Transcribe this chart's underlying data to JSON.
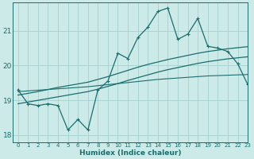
{
  "x": [
    0,
    1,
    2,
    3,
    4,
    5,
    6,
    7,
    8,
    9,
    10,
    11,
    12,
    13,
    14,
    15,
    16,
    17,
    18,
    19,
    20,
    21,
    22,
    23
  ],
  "y_main": [
    19.3,
    18.9,
    18.85,
    18.9,
    18.85,
    18.15,
    18.45,
    18.15,
    19.3,
    19.55,
    20.35,
    20.2,
    20.8,
    21.1,
    21.55,
    21.65,
    20.75,
    20.9,
    21.35,
    20.55,
    20.5,
    20.4,
    20.05,
    19.45
  ],
  "y_trend_low": [
    18.9,
    18.95,
    19.0,
    19.05,
    19.1,
    19.15,
    19.2,
    19.25,
    19.32,
    19.4,
    19.48,
    19.57,
    19.65,
    19.73,
    19.81,
    19.88,
    19.94,
    20.0,
    20.06,
    20.11,
    20.15,
    20.19,
    20.22,
    20.25
  ],
  "y_trend_high": [
    19.15,
    19.2,
    19.25,
    19.31,
    19.37,
    19.42,
    19.47,
    19.52,
    19.6,
    19.68,
    19.77,
    19.86,
    19.95,
    20.03,
    20.1,
    20.17,
    20.23,
    20.29,
    20.35,
    20.4,
    20.44,
    20.48,
    20.51,
    20.54
  ],
  "y_flat": [
    19.25,
    19.27,
    19.29,
    19.31,
    19.33,
    19.35,
    19.37,
    19.39,
    19.42,
    19.45,
    19.48,
    19.51,
    19.54,
    19.57,
    19.6,
    19.62,
    19.64,
    19.66,
    19.68,
    19.7,
    19.71,
    19.72,
    19.73,
    19.74
  ],
  "bg_color": "#cceae8",
  "grid_color": "#aad4d2",
  "line_color": "#1a6e6e",
  "xlabel": "Humidex (Indice chaleur)",
  "ylim": [
    17.8,
    21.8
  ],
  "xlim": [
    -0.5,
    23
  ],
  "yticks": [
    18,
    19,
    20,
    21
  ],
  "xticks": [
    0,
    1,
    2,
    3,
    4,
    5,
    6,
    7,
    8,
    9,
    10,
    11,
    12,
    13,
    14,
    15,
    16,
    17,
    18,
    19,
    20,
    21,
    22,
    23
  ]
}
